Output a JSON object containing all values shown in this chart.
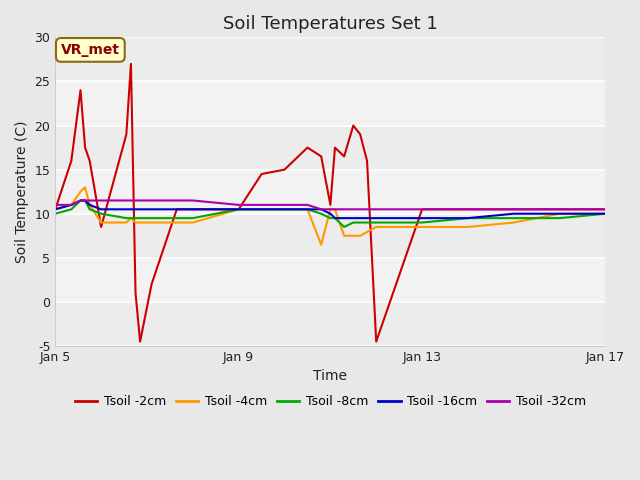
{
  "title": "Soil Temperatures Set 1",
  "xlabel": "Time",
  "ylabel": "Soil Temperature (C)",
  "ylim": [
    -5,
    30
  ],
  "xlim": [
    0,
    12
  ],
  "fig_bg": "#e8e8e8",
  "plot_bg": "#f2f2f2",
  "grid_color": "#ffffff",
  "annotation_label": "VR_met",
  "annotation_fc": "#ffffcc",
  "annotation_ec": "#8B6914",
  "annotation_tc": "#8B0000",
  "xtick_positions": [
    0,
    4,
    8,
    12
  ],
  "xtick_labels": [
    "Jan 5",
    "Jan 9",
    "Jan 13",
    "Jan 17"
  ],
  "ytick_positions": [
    -5,
    0,
    5,
    10,
    15,
    20,
    25,
    30
  ],
  "title_fontsize": 13,
  "axis_label_fontsize": 10,
  "tick_fontsize": 9,
  "legend_fontsize": 9,
  "series": {
    "Tsoil -2cm": {
      "color": "#cc0000",
      "lw": 1.5,
      "t": [
        0.0,
        0.35,
        0.55,
        0.65,
        0.75,
        1.0,
        1.55,
        1.65,
        1.75,
        1.85,
        2.1,
        2.65,
        3.0,
        4.0,
        4.5,
        5.0,
        5.5,
        5.8,
        6.0,
        6.1,
        6.3,
        6.5,
        6.65,
        6.8,
        7.0,
        8.0,
        9.0,
        10.0,
        11.0,
        12.0
      ],
      "v": [
        10.5,
        16.0,
        24.0,
        17.5,
        16.0,
        8.5,
        19.0,
        27.0,
        1.0,
        -4.5,
        2.0,
        10.5,
        10.5,
        10.5,
        14.5,
        15.0,
        17.5,
        16.5,
        11.0,
        17.5,
        16.5,
        20.0,
        19.0,
        16.0,
        -4.5,
        10.5,
        10.5,
        10.5,
        10.5,
        10.5
      ]
    },
    "Tsoil -4cm": {
      "color": "#ff9900",
      "lw": 1.5,
      "t": [
        0.0,
        0.35,
        0.55,
        0.65,
        0.75,
        1.0,
        1.55,
        1.65,
        1.75,
        2.1,
        2.65,
        3.0,
        4.0,
        4.5,
        5.0,
        5.5,
        5.8,
        6.0,
        6.1,
        6.3,
        6.5,
        6.65,
        7.0,
        8.0,
        9.0,
        10.0,
        11.0,
        12.0
      ],
      "v": [
        10.5,
        11.0,
        12.5,
        13.0,
        11.0,
        9.0,
        9.0,
        9.5,
        9.0,
        9.0,
        9.0,
        9.0,
        10.5,
        10.5,
        10.5,
        10.5,
        6.5,
        10.5,
        10.5,
        7.5,
        7.5,
        7.5,
        8.5,
        8.5,
        8.5,
        9.0,
        10.0,
        10.0
      ]
    },
    "Tsoil -8cm": {
      "color": "#00aa00",
      "lw": 1.5,
      "t": [
        0.0,
        0.35,
        0.55,
        0.65,
        0.75,
        1.0,
        1.55,
        1.65,
        1.75,
        2.1,
        2.65,
        3.0,
        4.0,
        4.5,
        5.0,
        5.5,
        5.8,
        6.0,
        6.1,
        6.3,
        6.5,
        6.65,
        7.0,
        8.0,
        9.0,
        10.0,
        11.0,
        12.0
      ],
      "v": [
        10.0,
        10.5,
        11.5,
        11.5,
        10.5,
        10.0,
        9.5,
        9.5,
        9.5,
        9.5,
        9.5,
        9.5,
        10.5,
        10.5,
        10.5,
        10.5,
        10.0,
        9.5,
        9.5,
        8.5,
        9.0,
        9.0,
        9.0,
        9.0,
        9.5,
        9.5,
        9.5,
        10.0
      ]
    },
    "Tsoil -16cm": {
      "color": "#0000cc",
      "lw": 1.5,
      "t": [
        0.0,
        0.35,
        0.55,
        0.65,
        0.75,
        1.0,
        1.55,
        1.65,
        1.75,
        2.1,
        2.65,
        3.0,
        4.0,
        4.5,
        5.0,
        5.5,
        5.8,
        6.0,
        6.1,
        6.3,
        6.5,
        6.65,
        7.0,
        8.0,
        9.0,
        10.0,
        11.0,
        12.0
      ],
      "v": [
        10.5,
        11.0,
        11.5,
        11.5,
        11.0,
        10.5,
        10.5,
        10.5,
        10.5,
        10.5,
        10.5,
        10.5,
        10.5,
        10.5,
        10.5,
        10.5,
        10.5,
        10.0,
        9.5,
        9.5,
        9.5,
        9.5,
        9.5,
        9.5,
        9.5,
        10.0,
        10.0,
        10.0
      ]
    },
    "Tsoil -32cm": {
      "color": "#aa00aa",
      "lw": 1.5,
      "t": [
        0.0,
        0.35,
        0.55,
        0.65,
        0.75,
        1.0,
        1.55,
        1.65,
        1.75,
        2.1,
        2.65,
        3.0,
        4.0,
        4.5,
        5.0,
        5.5,
        5.8,
        6.0,
        6.1,
        6.3,
        6.5,
        6.65,
        7.0,
        8.0,
        9.0,
        10.0,
        11.0,
        12.0
      ],
      "v": [
        11.0,
        11.0,
        11.5,
        11.5,
        11.5,
        11.5,
        11.5,
        11.5,
        11.5,
        11.5,
        11.5,
        11.5,
        11.0,
        11.0,
        11.0,
        11.0,
        10.5,
        10.5,
        10.5,
        10.5,
        10.5,
        10.5,
        10.5,
        10.5,
        10.5,
        10.5,
        10.5,
        10.5
      ]
    }
  }
}
